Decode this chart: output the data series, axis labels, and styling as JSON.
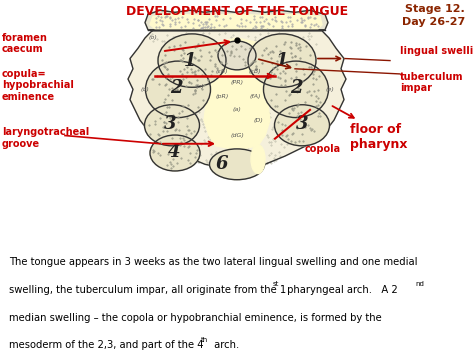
{
  "title": "DEVELOPMENT OF THE TONGUE",
  "stage_line1": "Stage 12.",
  "stage_line2": "Day 26-27",
  "bg_color": "#FFFACD",
  "title_color": "#CC0000",
  "stage_color": "#8B2500",
  "label_color": "#CC0000",
  "outline_color": "#333333",
  "dot_color": "#AAAAAA",
  "body_text_line1": "The tongue appears in 3 weeks as the two lateral lingual swelling and one medial",
  "body_text_line2": "swelling, the tuberculum impar, all originate from the 1",
  "body_text_sup1": "st",
  "body_text_mid2": " pharyngeal arch.   A 2",
  "body_text_sup2": "nd",
  "body_text_line3": "median swelling – the copola or hypobranchial eminence, is formed by the",
  "body_text_line4": "mesoderm of the 2,3, and part of the 4",
  "body_text_sup4": "th",
  "body_text_end4": " arch."
}
